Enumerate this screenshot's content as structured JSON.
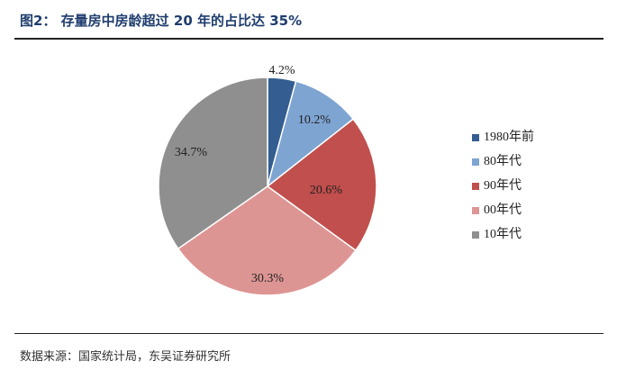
{
  "header": {
    "title": "图2：  存量房中房龄超过 20 年的占比达 35%"
  },
  "footer": {
    "source": "数据来源：国家统计局，东吴证券研究所"
  },
  "chart_data": {
    "type": "pie",
    "title": "图2：  存量房中房龄超过 20 年的占比达 35%",
    "categories": [
      "1980年前",
      "80年代",
      "90年代",
      "00年代",
      "10年代"
    ],
    "values": [
      4.2,
      10.2,
      20.6,
      30.3,
      34.7
    ],
    "labels": [
      "4.2%",
      "10.2%",
      "20.6%",
      "30.3%",
      "34.7%"
    ],
    "colors": [
      "#345d91",
      "#7ea4d2",
      "#c04f4d",
      "#dd9593",
      "#8f8f8f"
    ],
    "legend": {
      "placement": "right"
    }
  }
}
